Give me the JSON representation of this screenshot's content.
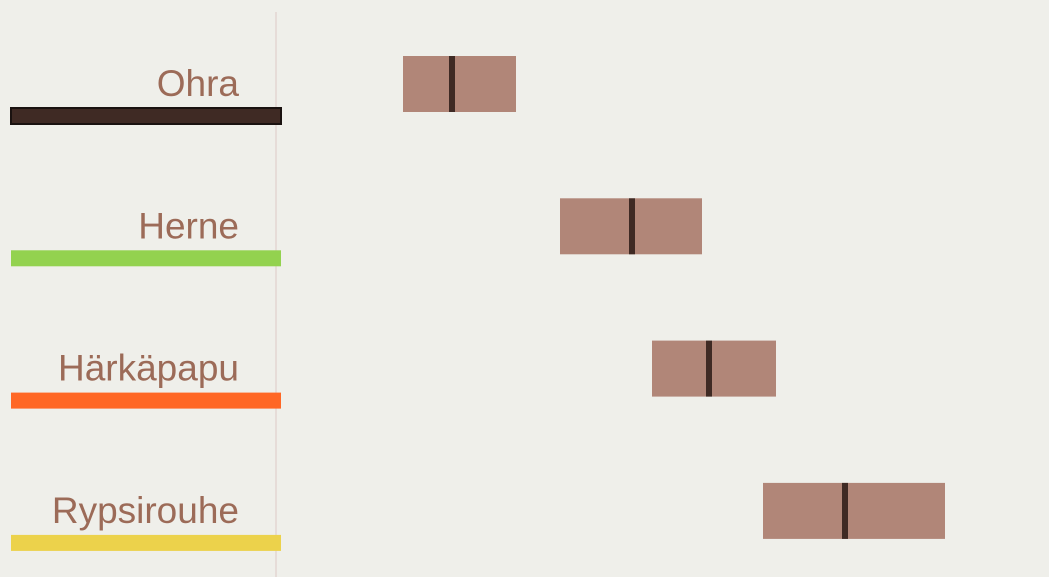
{
  "chart_data": {
    "type": "boxplot",
    "title": "",
    "xlabel": "",
    "ylabel": "",
    "grid": false,
    "legend": "none",
    "rows": [
      {
        "label": "Ohra",
        "color": "#3f2a24",
        "outlined": true,
        "low": 403,
        "median": 452,
        "high": 516
      },
      {
        "label": "Herne",
        "color": "#93d24f",
        "outlined": false,
        "low": 560,
        "median": 632,
        "high": 702
      },
      {
        "label": "Härkäpapu",
        "color": "#ff6725",
        "outlined": false,
        "low": 652,
        "median": 709,
        "high": 776
      },
      {
        "label": "Rypsirouhe",
        "color": "#ecd24b",
        "outlined": false,
        "low": 763,
        "median": 845,
        "high": 945
      }
    ],
    "xlim": [
      0,
      1049
    ],
    "colors": {
      "background": "#efefea",
      "box_fill": "#b18678",
      "median_line": "#3f2a24",
      "label_text": "#9c6b58",
      "divider": "#e3d6d2"
    }
  }
}
